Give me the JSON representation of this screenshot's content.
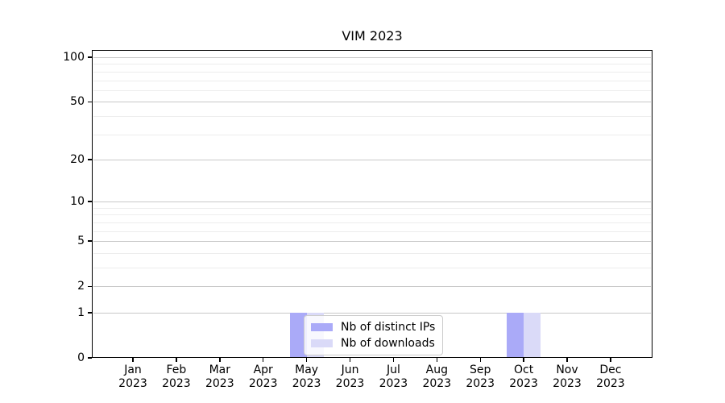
{
  "chart_data": {
    "type": "bar",
    "title": "VIM 2023",
    "categories": [
      "Jan 2023",
      "Feb 2023",
      "Mar 2023",
      "Apr 2023",
      "May 2023",
      "Jun 2023",
      "Jul 2023",
      "Aug 2023",
      "Sep 2023",
      "Oct 2023",
      "Nov 2023",
      "Dec 2023"
    ],
    "x_tick_line1": [
      "Jan",
      "Feb",
      "Mar",
      "Apr",
      "May",
      "Jun",
      "Jul",
      "Aug",
      "Sep",
      "Oct",
      "Nov",
      "Dec"
    ],
    "x_tick_line2": "2023",
    "series": [
      {
        "name": "Nb of distinct IPs",
        "color": "#aaaaf8",
        "values": [
          0,
          0,
          0,
          0,
          1,
          0,
          0,
          0,
          0,
          1,
          0,
          0
        ]
      },
      {
        "name": "Nb of downloads",
        "color": "#dadaf8",
        "values": [
          0,
          0,
          0,
          0,
          1,
          0,
          0,
          0,
          0,
          1,
          0,
          0
        ]
      }
    ],
    "y_axis": {
      "scale": "log(1+y)",
      "major_ticks": [
        100,
        50,
        20,
        10,
        5,
        2,
        1,
        0
      ],
      "minor_gridlines": [
        3,
        4,
        6,
        7,
        8,
        9,
        30,
        40,
        60,
        70,
        80,
        90
      ],
      "range": [
        0,
        112
      ]
    },
    "legend": {
      "position": "lower center"
    },
    "grid": {
      "major_color": "#c8c8c8",
      "minor_color": "#ededed"
    }
  }
}
